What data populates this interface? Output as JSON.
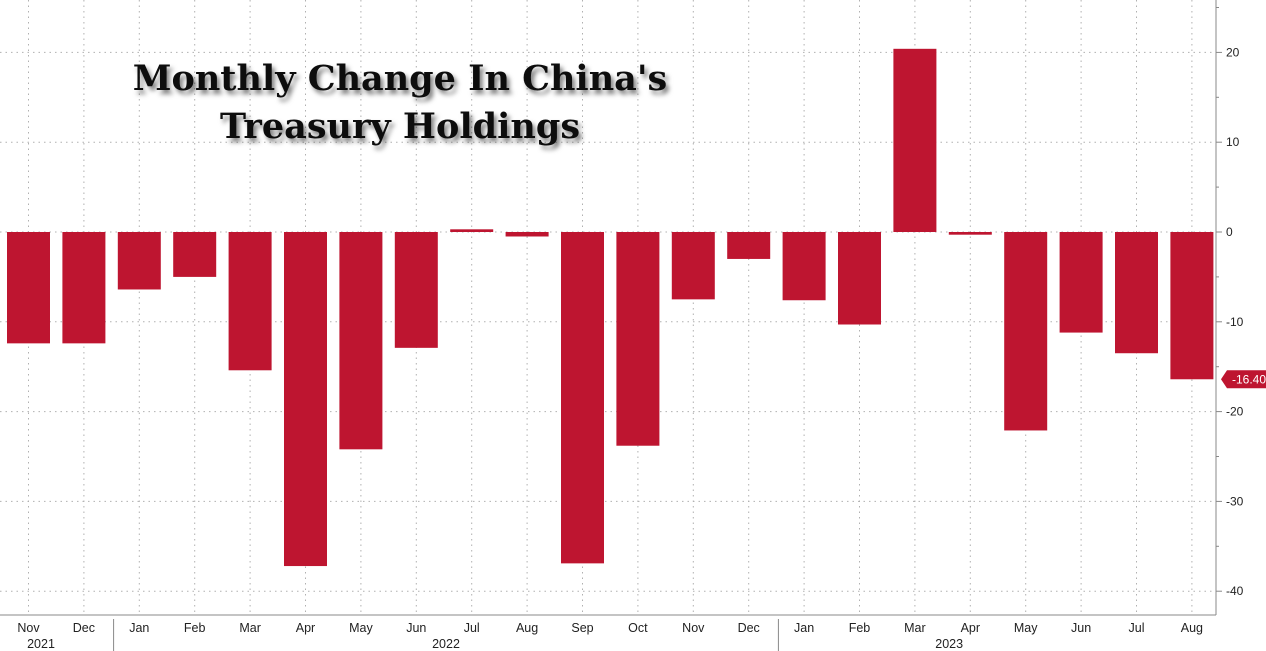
{
  "chart_data": {
    "type": "bar",
    "title": "Monthly Change In China's Treasury Holdings",
    "title_lines": [
      "Monthly Change In China's",
      "Treasury Holdings"
    ],
    "categories": [
      "Nov",
      "Dec",
      "Jan",
      "Feb",
      "Mar",
      "Apr",
      "May",
      "Jun",
      "Jul",
      "Aug",
      "Sep",
      "Oct",
      "Nov",
      "Dec",
      "Jan",
      "Feb",
      "Mar",
      "Apr",
      "May",
      "Jun",
      "Jul",
      "Aug"
    ],
    "year_labels": [
      {
        "label": "2021",
        "start_index": 0,
        "end_index": 1
      },
      {
        "label": "2022",
        "start_index": 2,
        "end_index": 13
      },
      {
        "label": "2023",
        "start_index": 14,
        "end_index": 21
      }
    ],
    "values": [
      -12.4,
      -12.4,
      -6.4,
      -5.0,
      -15.4,
      -37.2,
      -24.2,
      -12.9,
      0.3,
      -0.5,
      -36.9,
      -23.8,
      -7.5,
      -3.0,
      -7.6,
      -10.3,
      20.4,
      -0.3,
      -22.1,
      -11.2,
      -13.5,
      -16.4
    ],
    "last_value_label": "-16.40",
    "ylim": [
      -42,
      26
    ],
    "yticks": [
      20,
      10,
      0,
      -10,
      -20,
      -30,
      -40
    ],
    "ytick_labels": [
      "20",
      "10",
      "0",
      "-10",
      "-20",
      "-30",
      "-40"
    ],
    "xlabel": "",
    "ylabel": "",
    "grid": true,
    "y_axis_side": "right",
    "bar_color": "#be1530",
    "grid_color": "#b0b0b0"
  }
}
